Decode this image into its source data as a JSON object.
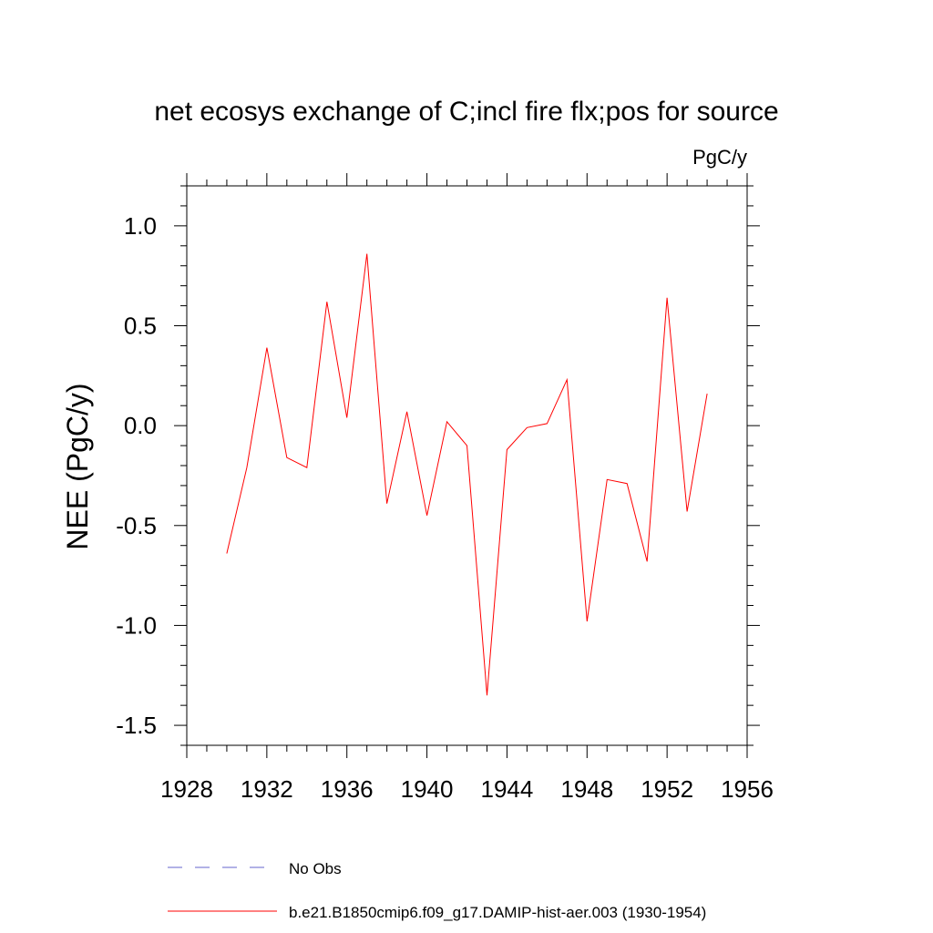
{
  "chart_data": {
    "type": "line",
    "title": "net ecosys exchange of C;incl fire flx;pos for source",
    "units_label": "PgC/y",
    "ylabel": "NEE  (PgC/y)",
    "xlabel": "",
    "xlim": [
      1928,
      1956
    ],
    "ylim": [
      -1.6,
      1.2
    ],
    "x_ticks": [
      1928,
      1932,
      1936,
      1940,
      1944,
      1948,
      1952,
      1956
    ],
    "x_tick_labels": [
      "1928",
      "1932",
      "1936",
      "1940",
      "1944",
      "1948",
      "1952",
      "1956"
    ],
    "y_ticks": [
      1.0,
      0.5,
      0.0,
      -0.5,
      -1.0,
      -1.5
    ],
    "y_tick_labels": [
      "1.0",
      "0.5",
      "0.0",
      "-0.5",
      "-1.0",
      "-1.5"
    ],
    "grid": false,
    "legend_position": "bottom",
    "series": [
      {
        "name": "b.e21.B1850cmip6.f09_g17.DAMIP-hist-aer.003 (1930-1954)",
        "color": "#ff0000",
        "style": "solid",
        "x": [
          1930,
          1931,
          1932,
          1933,
          1934,
          1935,
          1936,
          1937,
          1938,
          1939,
          1940,
          1941,
          1942,
          1943,
          1944,
          1945,
          1946,
          1947,
          1948,
          1949,
          1950,
          1951,
          1952,
          1953,
          1954
        ],
        "y": [
          -0.64,
          -0.21,
          0.39,
          -0.16,
          -0.21,
          0.62,
          0.04,
          0.86,
          -0.39,
          0.07,
          -0.45,
          0.02,
          -0.1,
          -1.35,
          -0.12,
          -0.01,
          0.01,
          0.23,
          -0.98,
          -0.27,
          -0.29,
          -0.68,
          0.64,
          -0.43,
          0.16
        ]
      }
    ],
    "legend": [
      {
        "label": "No Obs",
        "color": "#6666cc",
        "style": "dashed"
      },
      {
        "label": "b.e21.B1850cmip6.f09_g17.DAMIP-hist-aer.003 (1930-1954)",
        "color": "#ff0000",
        "style": "solid"
      }
    ]
  }
}
